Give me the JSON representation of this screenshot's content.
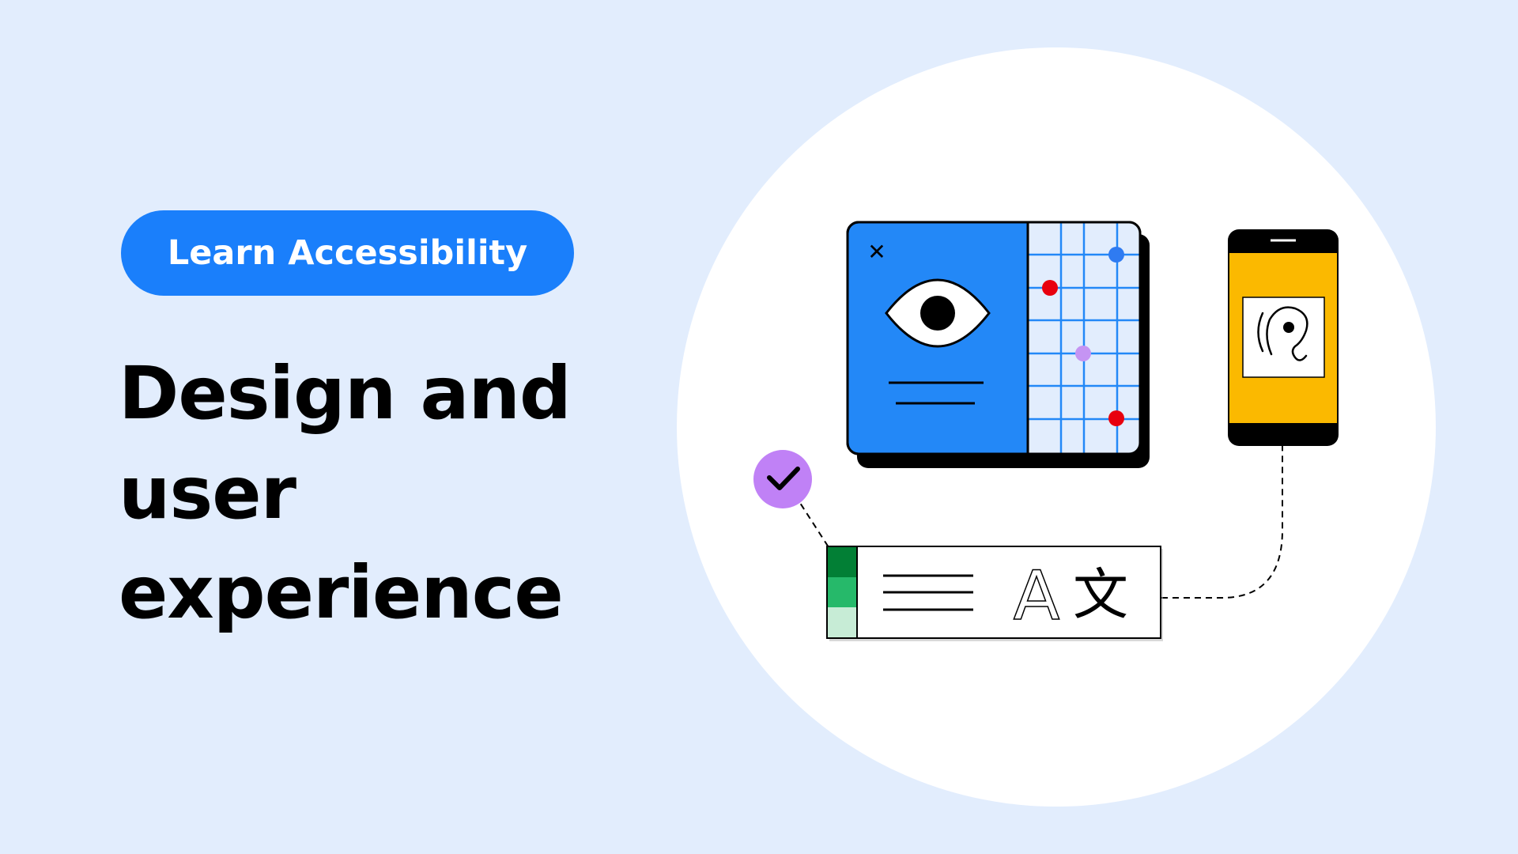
{
  "badge": {
    "label": "Learn Accessibility"
  },
  "headline": {
    "lines": [
      "Design and",
      "user",
      "experience"
    ]
  },
  "illustration": {
    "close_glyph": "✕",
    "text_glyph_latin": "A",
    "text_glyph_cjk": "文",
    "icons": [
      "eye-icon",
      "ear-icon",
      "checkmark-icon",
      "translate-icon"
    ]
  },
  "colors": {
    "background": "#e2edfd",
    "accent_blue": "#1a7ffb",
    "window_blue": "#2388f7",
    "phone_yellow": "#fbb900",
    "check_purple": "#c081f6",
    "point_red": "#e8000e",
    "point_blue": "#2f7bf1",
    "point_lilac": "#c594f3",
    "green_dark": "#027f35",
    "green_mid": "#26b96a",
    "green_light": "#c7ecd6"
  }
}
